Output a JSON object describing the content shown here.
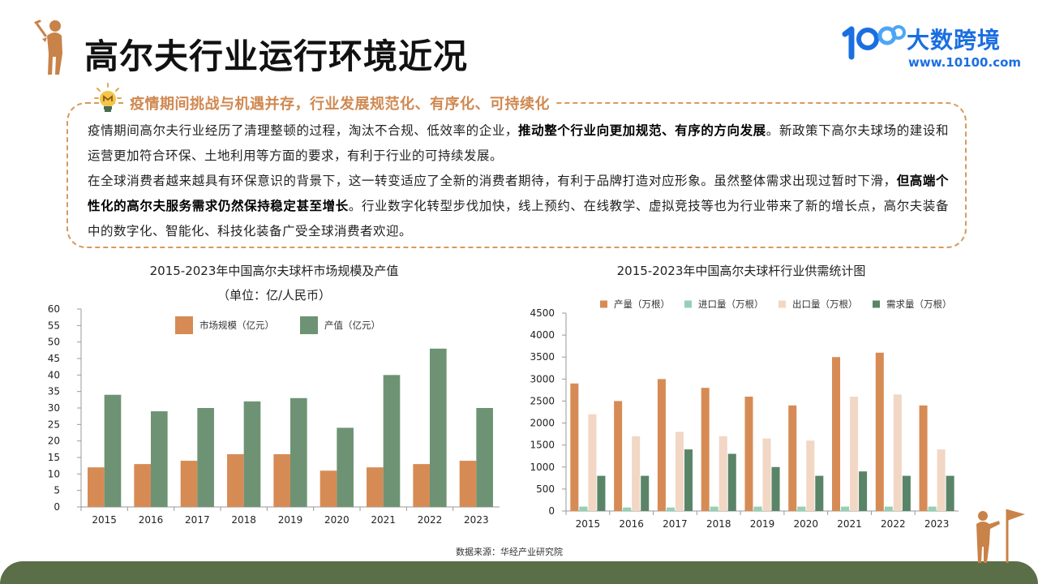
{
  "title": "高尔夫行业运行环境近况",
  "logo": {
    "name": "大数跨境",
    "url": "www.10100.com"
  },
  "summary": {
    "heading": "疫情期间挑战与机遇并存，行业发展规范化、有序化、可持续化",
    "p1_a": "疫情期间高尔夫行业经历了清理整顿的过程，淘汰不合规、低效率的企业，",
    "p1_b": "推动整个行业向更加规范、有序的方向发展",
    "p1_c": "。新政策下高尔夫球场的建设和运营更加符合环保、土地利用等方面的要求，有利于行业的可持续发展。",
    "p2_a": "在全球消费者越来越具有环保意识的背景下，这一转变适应了全新的消费者期待，有利于品牌打造对应形象。虽然整体需求出现过暂时下滑，",
    "p2_b": "但高端个性化的高尔夫服务需求仍然保持稳定甚至增长",
    "p2_c": "。行业数字化转型步伐加快，线上预约、在线教学、虚拟竞技等也为行业带来了新的增长点，高尔夫装备中的数字化、智能化、科技化装备广受全球消费者欢迎。"
  },
  "source": "数据来源：华经产业研究院",
  "colors": {
    "orange": "#d68b55",
    "green": "#6e9374",
    "mint": "#93d1b2",
    "peach": "#f1d7c4",
    "darkgreen": "#5a8468"
  },
  "chart_data": [
    {
      "type": "bar",
      "title": "2015-2023年中国高尔夫球杆市场规模及产值",
      "subtitle": "（单位：亿/人民币）",
      "categories": [
        "2015",
        "2016",
        "2017",
        "2018",
        "2019",
        "2020",
        "2021",
        "2022",
        "2023"
      ],
      "yticks": [
        "0",
        "5",
        "10",
        "15",
        "20",
        "25",
        "30",
        "35",
        "40",
        "45",
        "50",
        "55",
        "60"
      ],
      "ylim": [
        0,
        60
      ],
      "legend_position": "top",
      "series": [
        {
          "name": "市场规模（亿元）",
          "color": "#d68b55",
          "values": [
            12,
            13,
            14,
            16,
            16,
            11,
            12,
            13,
            14
          ]
        },
        {
          "name": "产值（亿元）",
          "color": "#6e9374",
          "values": [
            34,
            29,
            30,
            32,
            33,
            24,
            40,
            48,
            30
          ]
        }
      ]
    },
    {
      "type": "bar",
      "title": "2015-2023年中国高尔夫球杆行业供需统计图",
      "categories": [
        "2015",
        "2016",
        "2017",
        "2018",
        "2019",
        "2020",
        "2021",
        "2022",
        "2023"
      ],
      "yticks": [
        "0",
        "500",
        "1000",
        "1500",
        "2000",
        "2500",
        "3000",
        "3500",
        "4000",
        "4500"
      ],
      "ylim": [
        0,
        4500
      ],
      "legend_position": "top",
      "series": [
        {
          "name": "产量（万根）",
          "color": "#d68b55",
          "values": [
            2900,
            2500,
            3000,
            2800,
            2600,
            2400,
            3500,
            3600,
            2400
          ]
        },
        {
          "name": "进口量（万根）",
          "color": "#93d1b2",
          "values": [
            100,
            80,
            80,
            100,
            100,
            100,
            100,
            100,
            100
          ]
        },
        {
          "name": "出口量（万根）",
          "color": "#f1d7c4",
          "values": [
            2200,
            1700,
            1800,
            1700,
            1650,
            1600,
            2600,
            2650,
            1400
          ]
        },
        {
          "name": "需求量（万根）",
          "color": "#5a8468",
          "values": [
            800,
            800,
            1400,
            1300,
            1000,
            800,
            900,
            800,
            800
          ]
        }
      ]
    }
  ]
}
